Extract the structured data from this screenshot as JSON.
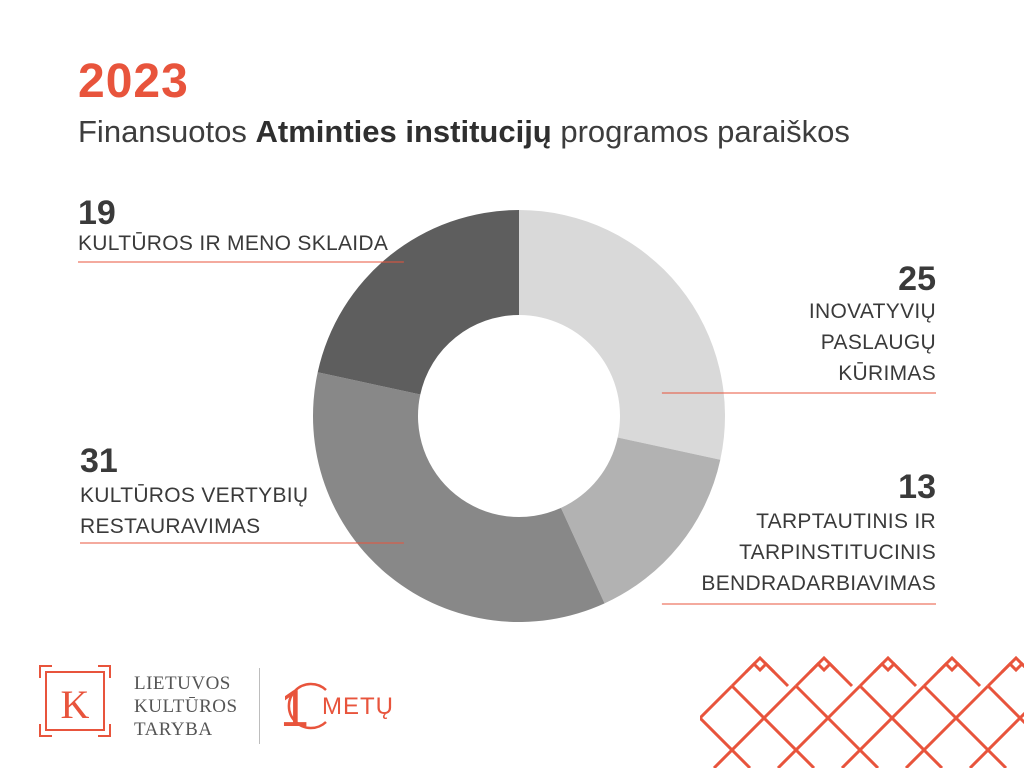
{
  "header": {
    "year": "2023",
    "subtitle_pre": "Finansuotos ",
    "subtitle_bold": "Atminties institucijų",
    "subtitle_post": " programos paraiškos"
  },
  "chart_data": {
    "type": "pie",
    "donut": true,
    "categories": [
      "INOVATYVIŲ PASLAUGŲ KŪRIMAS",
      "TARPTAUTINIS IR TARPINSTITUCINIS BENDRADARBIAVIMAS",
      "KULTŪROS VERTYBIŲ RESTAURAVIMAS",
      "KULTŪROS IR MENO SKLAIDA"
    ],
    "values": [
      25,
      13,
      31,
      19
    ],
    "labels": [
      {
        "value": "25",
        "text": "INOVATYVIŲ\nPASLAUGŲ\nKŪRIMAS"
      },
      {
        "value": "13",
        "text": "TARPTAUTINIS IR\nTARPINSTITUCINIS\nBENDRADARBIAVIMAS"
      },
      {
        "value": "31",
        "text": "KULTŪROS VERTYBIŲ\nRESTAURAVIMAS"
      },
      {
        "value": "19",
        "text": "KULTŪROS IR MENO SKLAIDA"
      }
    ],
    "colors": [
      "#d9d9d9",
      "#b2b2b2",
      "#888888",
      "#5e5e5e"
    ],
    "leader_color": "#e8543c"
  },
  "footer": {
    "logo_letter": "K",
    "logo_text": "LIETUVOS\nKULTŪROS\nTARYBA",
    "anniversary_digit": "1",
    "anniversary_text": "METŲ",
    "accent": "#e8543c"
  }
}
